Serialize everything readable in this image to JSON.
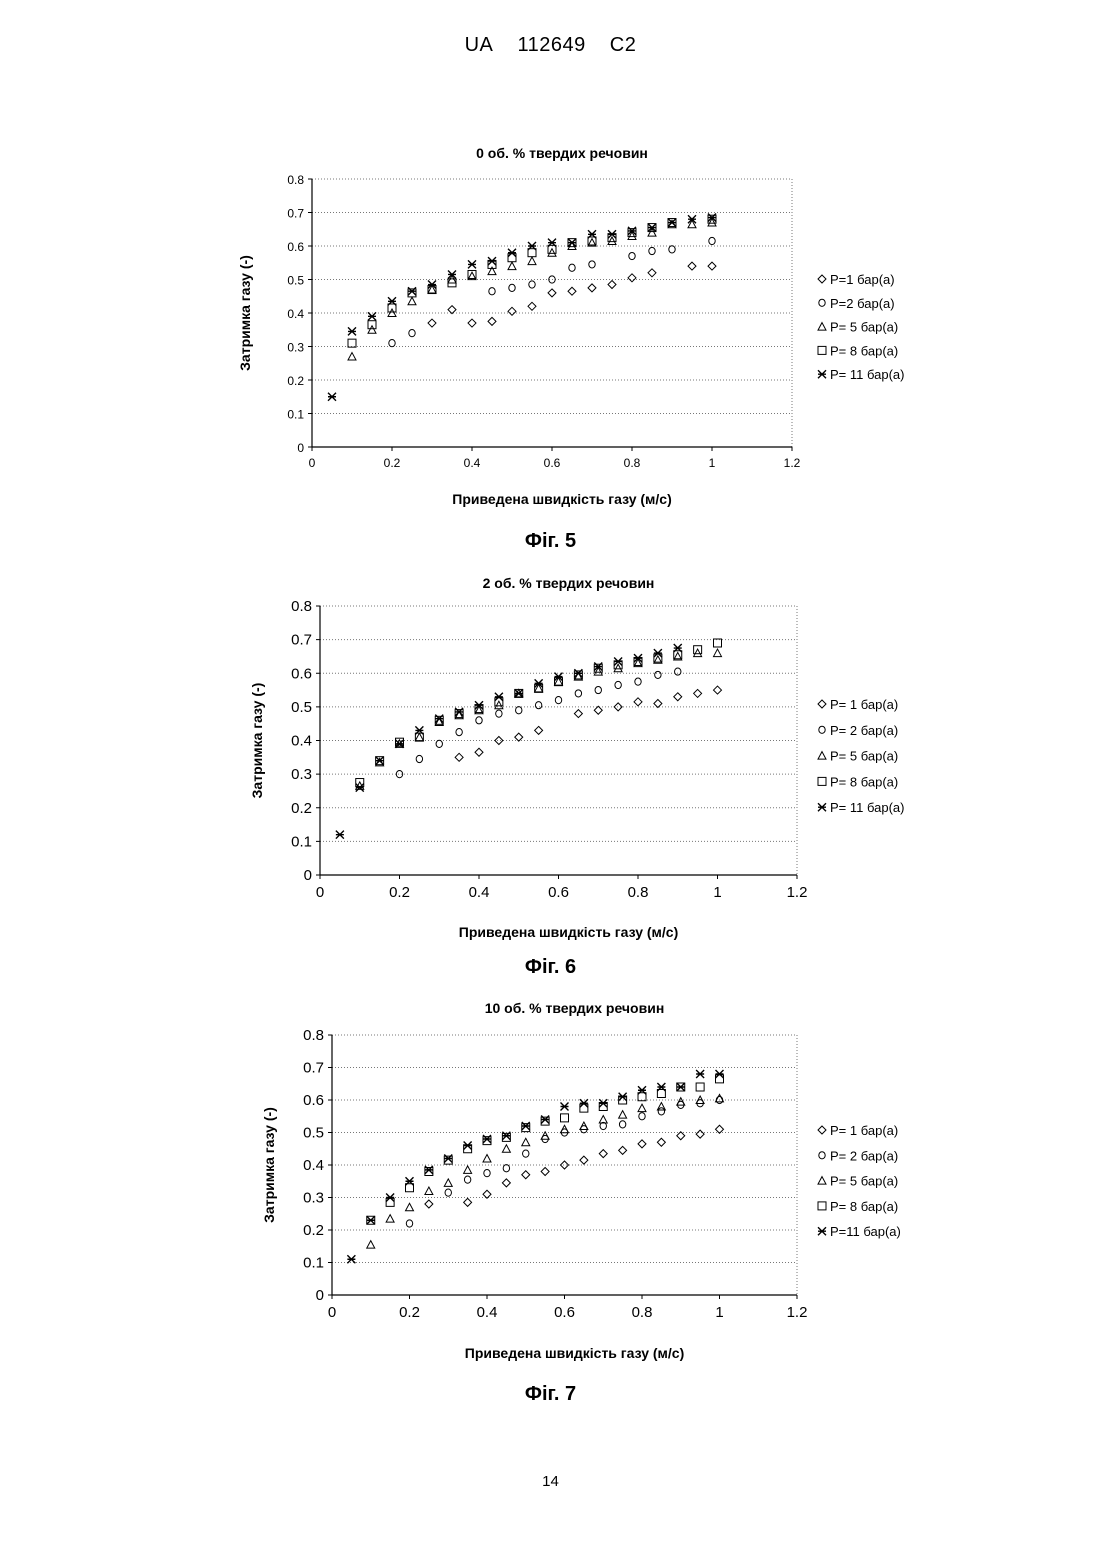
{
  "header": {
    "country": "UA",
    "number": "112649",
    "kind": "C2"
  },
  "page_number": "14",
  "figures": [
    {
      "caption": "Фіг. 5"
    },
    {
      "caption": "Фіг. 6"
    },
    {
      "caption": "Фіг. 7"
    }
  ],
  "chart_data": [
    {
      "type": "scatter",
      "title": "0 об. % твердих речовин",
      "xlabel": "Приведена швидкість газу (м/с)",
      "ylabel": "Затримка газу (-)",
      "xlim": [
        0,
        1.2
      ],
      "ylim": [
        0,
        0.8
      ],
      "xticks": [
        0,
        0.2,
        0.4,
        0.6,
        0.8,
        1,
        1.2
      ],
      "yticks": [
        0,
        0.1,
        0.2,
        0.3,
        0.4,
        0.5,
        0.6,
        0.7,
        0.8
      ],
      "xtick_labels": [
        "0",
        "0.2",
        "0.4",
        "0.6",
        "0.8",
        "1",
        "1.2"
      ],
      "ytick_labels": [
        "0",
        "0.1",
        "0.2",
        "0.3",
        "0.4",
        "0.5",
        "0.6",
        "0.7",
        "0.8"
      ],
      "grid": "horizontal-dotted",
      "legend": "right",
      "series": [
        {
          "name": "P=1 бар(а)",
          "marker": "diamond",
          "x": [
            0.3,
            0.35,
            0.4,
            0.45,
            0.5,
            0.55,
            0.6,
            0.65,
            0.7,
            0.75,
            0.8,
            0.85,
            0.95,
            1.0
          ],
          "y": [
            0.37,
            0.41,
            0.37,
            0.375,
            0.405,
            0.42,
            0.46,
            0.465,
            0.475,
            0.485,
            0.505,
            0.52,
            0.54,
            0.54
          ]
        },
        {
          "name": "P=2 бар(а)",
          "marker": "circle",
          "x": [
            0.2,
            0.25,
            0.45,
            0.5,
            0.55,
            0.6,
            0.65,
            0.7,
            0.8,
            0.85,
            0.9,
            1.0
          ],
          "y": [
            0.31,
            0.34,
            0.465,
            0.475,
            0.485,
            0.5,
            0.535,
            0.545,
            0.57,
            0.585,
            0.59,
            0.615
          ]
        },
        {
          "name": "P= 5 бар(а)",
          "marker": "triangle",
          "x": [
            0.1,
            0.15,
            0.2,
            0.25,
            0.3,
            0.35,
            0.4,
            0.45,
            0.5,
            0.55,
            0.6,
            0.65,
            0.7,
            0.75,
            0.8,
            0.85,
            0.9,
            0.95,
            1.0
          ],
          "y": [
            0.27,
            0.35,
            0.4,
            0.435,
            0.47,
            0.5,
            0.51,
            0.525,
            0.54,
            0.555,
            0.58,
            0.6,
            0.61,
            0.615,
            0.63,
            0.64,
            0.665,
            0.665,
            0.67
          ]
        },
        {
          "name": "P= 8 бар(а)",
          "marker": "square",
          "x": [
            0.1,
            0.15,
            0.2,
            0.25,
            0.3,
            0.35,
            0.4,
            0.45,
            0.5,
            0.55,
            0.6,
            0.65,
            0.7,
            0.75,
            0.8,
            0.85,
            0.9,
            1.0
          ],
          "y": [
            0.31,
            0.365,
            0.415,
            0.46,
            0.47,
            0.49,
            0.515,
            0.545,
            0.565,
            0.58,
            0.59,
            0.61,
            0.615,
            0.625,
            0.64,
            0.655,
            0.67,
            0.68
          ]
        },
        {
          "name": "P= 11 бар(а)",
          "marker": "asterisk",
          "x": [
            0.05,
            0.1,
            0.15,
            0.2,
            0.25,
            0.3,
            0.35,
            0.4,
            0.45,
            0.5,
            0.55,
            0.6,
            0.65,
            0.7,
            0.75,
            0.8,
            0.85,
            0.9,
            0.95,
            1.0
          ],
          "y": [
            0.15,
            0.345,
            0.39,
            0.435,
            0.465,
            0.485,
            0.515,
            0.545,
            0.555,
            0.58,
            0.6,
            0.61,
            0.61,
            0.635,
            0.635,
            0.645,
            0.655,
            0.67,
            0.68,
            0.685
          ]
        }
      ]
    },
    {
      "type": "scatter",
      "title": "2 об. % твердих речовин",
      "xlabel": "Приведена швидкість газу (м/с)",
      "ylabel": "Затримка газу (-)",
      "xlim": [
        0,
        1.2
      ],
      "ylim": [
        0,
        0.8
      ],
      "xticks": [
        0,
        0.2,
        0.4,
        0.6,
        0.8,
        1,
        1.2
      ],
      "yticks": [
        0,
        0.1,
        0.2,
        0.3,
        0.4,
        0.5,
        0.6,
        0.7,
        0.8
      ],
      "xtick_labels": [
        "0",
        "0.2",
        "0.4",
        "0.6",
        "0.8",
        "1",
        "1.2"
      ],
      "ytick_labels": [
        "0",
        "0.1",
        "0.2",
        "0.3",
        "0.4",
        "0.5",
        "0.6",
        "0.7",
        "0.8"
      ],
      "grid": "horizontal-dotted",
      "legend": "right",
      "series": [
        {
          "name": "P= 1 бар(а)",
          "marker": "diamond",
          "x": [
            0.35,
            0.4,
            0.45,
            0.5,
            0.55,
            0.65,
            0.7,
            0.75,
            0.8,
            0.85,
            0.9,
            0.95,
            1.0
          ],
          "y": [
            0.35,
            0.365,
            0.4,
            0.41,
            0.43,
            0.48,
            0.49,
            0.5,
            0.515,
            0.51,
            0.53,
            0.54,
            0.55
          ]
        },
        {
          "name": "P= 2 бар(а)",
          "marker": "circle",
          "x": [
            0.2,
            0.25,
            0.3,
            0.35,
            0.4,
            0.45,
            0.5,
            0.55,
            0.6,
            0.65,
            0.7,
            0.75,
            0.8,
            0.85,
            0.9
          ],
          "y": [
            0.3,
            0.345,
            0.39,
            0.425,
            0.46,
            0.48,
            0.49,
            0.505,
            0.52,
            0.54,
            0.55,
            0.565,
            0.575,
            0.595,
            0.605
          ]
        },
        {
          "name": "P= 5 бар(а)",
          "marker": "triangle",
          "x": [
            0.1,
            0.15,
            0.2,
            0.25,
            0.3,
            0.35,
            0.4,
            0.45,
            0.5,
            0.55,
            0.6,
            0.65,
            0.7,
            0.75,
            0.8,
            0.85,
            0.9,
            0.95,
            1.0
          ],
          "y": [
            0.265,
            0.335,
            0.39,
            0.41,
            0.455,
            0.475,
            0.49,
            0.505,
            0.54,
            0.555,
            0.575,
            0.59,
            0.605,
            0.615,
            0.63,
            0.64,
            0.65,
            0.66,
            0.66
          ]
        },
        {
          "name": "P= 8 бар(а)",
          "marker": "square",
          "x": [
            0.1,
            0.15,
            0.2,
            0.25,
            0.3,
            0.35,
            0.4,
            0.45,
            0.5,
            0.55,
            0.6,
            0.65,
            0.7,
            0.75,
            0.8,
            0.85,
            0.9,
            0.95,
            1.0
          ],
          "y": [
            0.275,
            0.34,
            0.395,
            0.41,
            0.46,
            0.48,
            0.495,
            0.515,
            0.54,
            0.555,
            0.575,
            0.595,
            0.615,
            0.625,
            0.635,
            0.645,
            0.655,
            0.67,
            0.69
          ]
        },
        {
          "name": "P= 11 бар(а)",
          "marker": "asterisk",
          "x": [
            0.05,
            0.1,
            0.15,
            0.2,
            0.25,
            0.3,
            0.35,
            0.4,
            0.45,
            0.5,
            0.55,
            0.6,
            0.65,
            0.7,
            0.75,
            0.8,
            0.85,
            0.9
          ],
          "y": [
            0.12,
            0.26,
            0.34,
            0.39,
            0.43,
            0.465,
            0.485,
            0.505,
            0.53,
            0.54,
            0.57,
            0.59,
            0.6,
            0.62,
            0.635,
            0.645,
            0.66,
            0.675
          ]
        }
      ]
    },
    {
      "type": "scatter",
      "title": "10 об. % твердих речовин",
      "xlabel": "Приведена швидкість газу (м/с)",
      "ylabel": "Затримка газу (-)",
      "xlim": [
        0,
        1.2
      ],
      "ylim": [
        0,
        0.8
      ],
      "xticks": [
        0,
        0.2,
        0.4,
        0.6,
        0.8,
        1,
        1.2
      ],
      "yticks": [
        0,
        0.1,
        0.2,
        0.3,
        0.4,
        0.5,
        0.6,
        0.7,
        0.8
      ],
      "xtick_labels": [
        "0",
        "0.2",
        "0.4",
        "0.6",
        "0.8",
        "1",
        "1.2"
      ],
      "ytick_labels": [
        "0",
        "0.1",
        "0.2",
        "0.3",
        "0.4",
        "0.5",
        "0.6",
        "0.7",
        "0.8"
      ],
      "grid": "horizontal-dotted",
      "legend": "right",
      "series": [
        {
          "name": "P= 1 бар(а)",
          "marker": "diamond",
          "x": [
            0.25,
            0.35,
            0.4,
            0.45,
            0.5,
            0.55,
            0.6,
            0.65,
            0.7,
            0.75,
            0.8,
            0.85,
            0.9,
            0.95,
            1.0
          ],
          "y": [
            0.28,
            0.285,
            0.31,
            0.345,
            0.37,
            0.38,
            0.4,
            0.415,
            0.435,
            0.445,
            0.465,
            0.47,
            0.49,
            0.495,
            0.51
          ]
        },
        {
          "name": "P= 2 бар(а)",
          "marker": "circle",
          "x": [
            0.2,
            0.3,
            0.35,
            0.4,
            0.45,
            0.5,
            0.55,
            0.6,
            0.65,
            0.7,
            0.75,
            0.8,
            0.85,
            0.9,
            0.95,
            1.0
          ],
          "y": [
            0.22,
            0.315,
            0.355,
            0.375,
            0.39,
            0.435,
            0.48,
            0.5,
            0.51,
            0.52,
            0.525,
            0.55,
            0.565,
            0.585,
            0.59,
            0.6
          ]
        },
        {
          "name": "P= 5 бар(а)",
          "marker": "triangle",
          "x": [
            0.1,
            0.15,
            0.2,
            0.25,
            0.3,
            0.35,
            0.4,
            0.45,
            0.5,
            0.55,
            0.6,
            0.65,
            0.7,
            0.75,
            0.8,
            0.85,
            0.9,
            0.95,
            1.0
          ],
          "y": [
            0.155,
            0.235,
            0.27,
            0.32,
            0.345,
            0.385,
            0.42,
            0.45,
            0.47,
            0.49,
            0.51,
            0.52,
            0.54,
            0.555,
            0.575,
            0.58,
            0.595,
            0.6,
            0.605
          ]
        },
        {
          "name": "P= 8 бар(а)",
          "marker": "square",
          "x": [
            0.1,
            0.15,
            0.2,
            0.25,
            0.3,
            0.35,
            0.4,
            0.45,
            0.5,
            0.55,
            0.6,
            0.65,
            0.7,
            0.75,
            0.8,
            0.85,
            0.9,
            0.95,
            1.0
          ],
          "y": [
            0.23,
            0.285,
            0.33,
            0.38,
            0.415,
            0.45,
            0.475,
            0.485,
            0.515,
            0.535,
            0.545,
            0.575,
            0.58,
            0.6,
            0.61,
            0.62,
            0.64,
            0.64,
            0.665
          ]
        },
        {
          "name": "P=11 бар(а)",
          "marker": "asterisk",
          "x": [
            0.05,
            0.1,
            0.15,
            0.2,
            0.25,
            0.3,
            0.35,
            0.4,
            0.45,
            0.5,
            0.55,
            0.6,
            0.65,
            0.7,
            0.75,
            0.8,
            0.85,
            0.9,
            0.95,
            1.0
          ],
          "y": [
            0.11,
            0.23,
            0.3,
            0.35,
            0.385,
            0.42,
            0.46,
            0.48,
            0.49,
            0.52,
            0.54,
            0.58,
            0.59,
            0.59,
            0.61,
            0.63,
            0.64,
            0.64,
            0.68,
            0.68
          ]
        }
      ]
    }
  ]
}
